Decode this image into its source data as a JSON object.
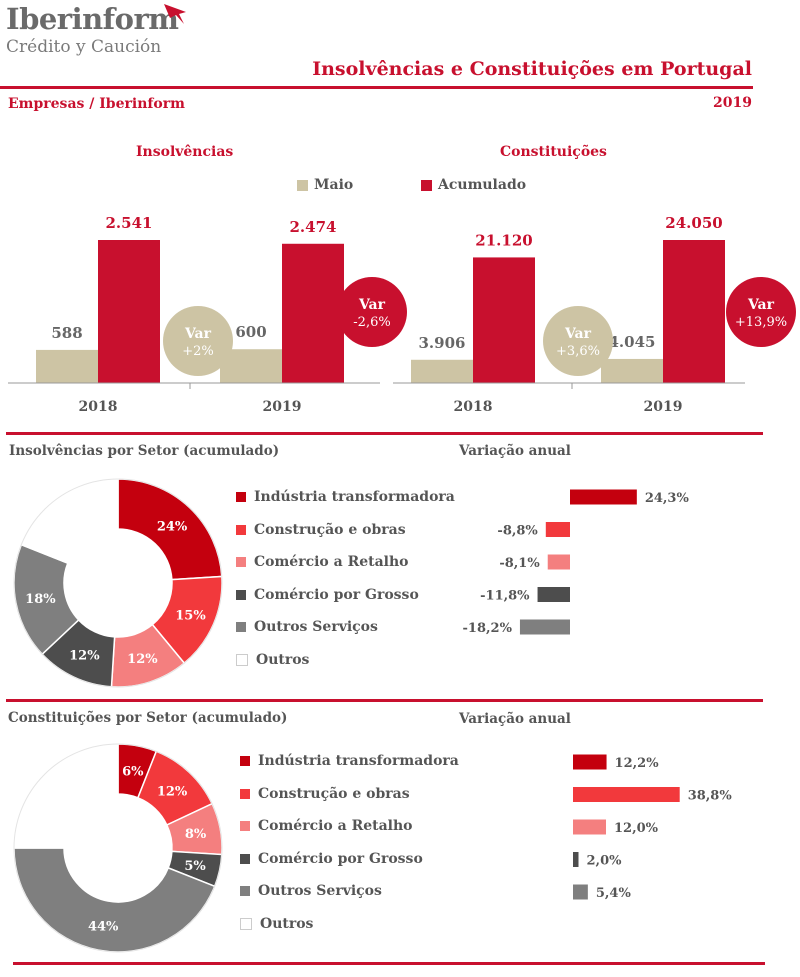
{
  "brand": {
    "name": "Iberinform",
    "sub": "Crédito y Caución"
  },
  "header": {
    "title": "Insolvências e Constituições em  Portugal",
    "left_label": "Empresas / Iberinform",
    "year": "2019"
  },
  "colors": {
    "accent": "#c8102e",
    "maio": "#cdc4a4",
    "acumulado": "#c8102e",
    "industria": "#c4000e",
    "construcao": "#f2393c",
    "comercio_retalho": "#f47f7f",
    "comercio_grosso": "#4d4d4d",
    "outros_servicos": "#7f7f7f",
    "outros": "#ffffff"
  },
  "legend": {
    "maio": "Maio",
    "acumulado": "Acumulado"
  },
  "sector_labels": [
    "Indústria transformadora",
    "Construção e obras",
    "Comércio a Retalho",
    "Comércio por Grosso",
    "Outros Serviços",
    "Outros"
  ],
  "chart_data": [
    {
      "type": "bar",
      "title": "Insolvências",
      "categories": [
        "2018",
        "2019"
      ],
      "series": [
        {
          "name": "Maio",
          "values": [
            588,
            600
          ],
          "labels": [
            "588",
            "600"
          ]
        },
        {
          "name": "Acumulado",
          "values": [
            2541,
            2474
          ],
          "labels": [
            "2.541",
            "2.474"
          ]
        }
      ],
      "annotations": [
        {
          "text": [
            "Var",
            "+2%"
          ],
          "series": "Maio"
        },
        {
          "text": [
            "Var",
            "-2,6%"
          ],
          "series": "Acumulado"
        }
      ],
      "legend": "top"
    },
    {
      "type": "bar",
      "title": "Constituições",
      "categories": [
        "2018",
        "2019"
      ],
      "series": [
        {
          "name": "Maio",
          "values": [
            3906,
            4045
          ],
          "labels": [
            "3.906",
            "4.045"
          ]
        },
        {
          "name": "Acumulado",
          "values": [
            21120,
            24050
          ],
          "labels": [
            "21.120",
            "24.050"
          ]
        }
      ],
      "annotations": [
        {
          "text": [
            "Var",
            "+3,6%"
          ],
          "series": "Maio"
        },
        {
          "text": [
            "Var",
            "+13,9%"
          ],
          "series": "Acumulado"
        }
      ],
      "legend": "top"
    },
    {
      "type": "pie",
      "title": "Insolvências por Setor (acumulado)",
      "labels": [
        "Indústria transformadora",
        "Construção e obras",
        "Comércio a Retalho",
        "Comércio por Grosso",
        "Outros Serviços",
        "Outros"
      ],
      "values": [
        24,
        15,
        12,
        12,
        18,
        19
      ],
      "value_labels": [
        "24%",
        "15%",
        "12%",
        "12%",
        "18%",
        ""
      ]
    },
    {
      "type": "bar",
      "title": "Variação anual",
      "orientation": "horizontal",
      "categories": [
        "Indústria transformadora",
        "Construção e obras",
        "Comércio a Retalho",
        "Comércio por Grosso",
        "Outros Serviços"
      ],
      "values": [
        24.3,
        -8.8,
        -8.1,
        -11.8,
        -18.2
      ],
      "value_labels": [
        "24,3%",
        "-8,8%",
        "-8,1%",
        "-11,8%",
        "-18,2%"
      ]
    },
    {
      "type": "pie",
      "title": "Constituições por Setor (acumulado)",
      "labels": [
        "Indústria transformadora",
        "Construção e obras",
        "Comércio a Retalho",
        "Comércio por Grosso",
        "Outros Serviços",
        "Outros"
      ],
      "values": [
        6,
        12,
        8,
        5,
        44,
        25
      ],
      "value_labels": [
        "6%",
        "12%",
        "8%",
        "5%",
        "44%",
        ""
      ]
    },
    {
      "type": "bar",
      "title": "Variação anual",
      "orientation": "horizontal",
      "categories": [
        "Indústria transformadora",
        "Construção e obras",
        "Comércio a Retalho",
        "Comércio por Grosso",
        "Outros Serviços"
      ],
      "values": [
        12.2,
        38.8,
        12.0,
        2.0,
        5.4
      ],
      "value_labels": [
        "12,2%",
        "38,8%",
        "12,0%",
        "2,0%",
        "5,4%"
      ]
    }
  ]
}
